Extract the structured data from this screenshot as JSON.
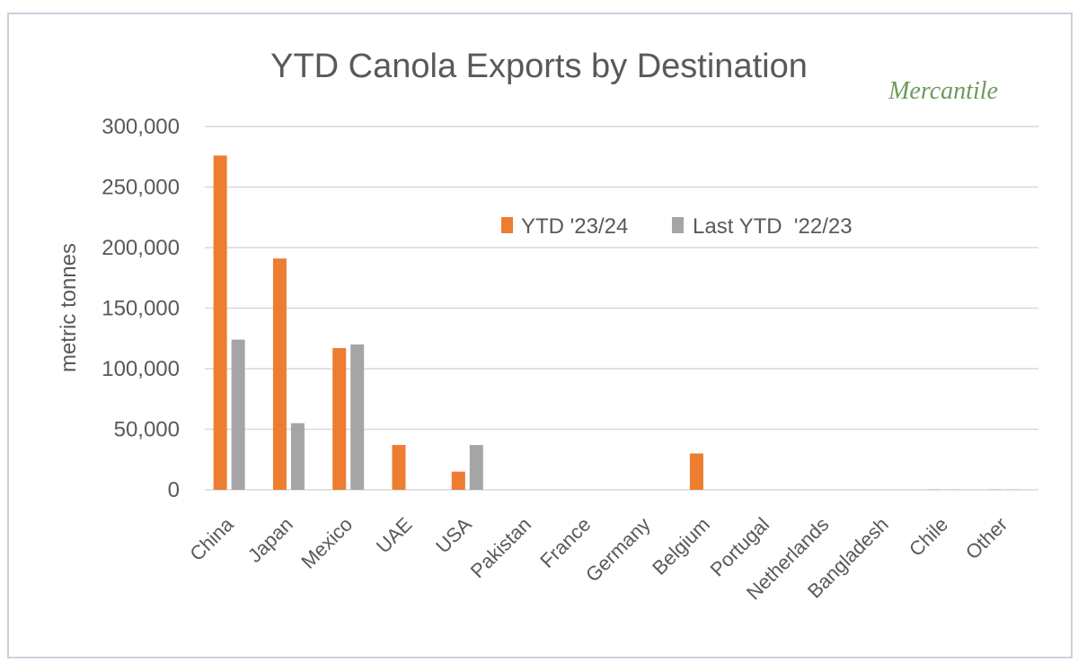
{
  "brand": "Mercantile",
  "chart_data": {
    "type": "bar",
    "title": "YTD Canola Exports by Destination",
    "xlabel": "",
    "ylabel": "metric tonnes",
    "ylim": [
      0,
      300000
    ],
    "yticks": [
      0,
      50000,
      100000,
      150000,
      200000,
      250000,
      300000
    ],
    "ytick_labels": [
      "0",
      "50,000",
      "100,000",
      "150,000",
      "200,000",
      "250,000",
      "300,000"
    ],
    "grid": true,
    "legend_position": "top-center",
    "categories": [
      "China",
      "Japan",
      "Mexico",
      "UAE",
      "USA",
      "Pakistan",
      "France",
      "Germany",
      "Belgium",
      "Portugal",
      "Netherlands",
      "Bangladesh",
      "Chile",
      "Other"
    ],
    "series": [
      {
        "name": "YTD '23/24",
        "color": "#ED7D31",
        "values": [
          276000,
          191000,
          117000,
          37000,
          15000,
          0,
          0,
          0,
          30000,
          0,
          0,
          0,
          500,
          500
        ]
      },
      {
        "name": "Last YTD  '22/23",
        "color": "#A5A5A5",
        "values": [
          124000,
          55000,
          120000,
          0,
          37000,
          0,
          0,
          0,
          0,
          0,
          0,
          0,
          500,
          500
        ]
      }
    ]
  }
}
